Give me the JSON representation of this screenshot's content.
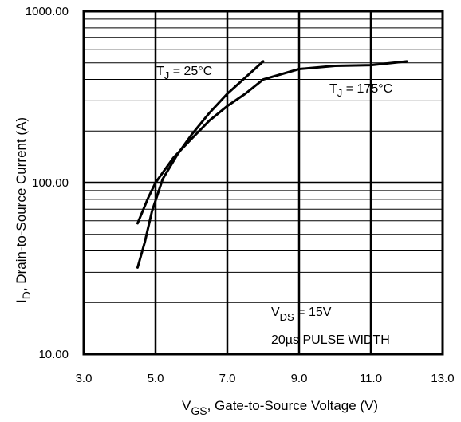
{
  "chart_data": {
    "type": "line",
    "xlabel": {
      "main": "V",
      "sub": "GS",
      "rest": ", Gate-to-Source Voltage (V)"
    },
    "ylabel": {
      "main": "I",
      "sub": "D",
      "rest": ", Drain-to-Source Current  (A)"
    },
    "xlim": [
      3.0,
      13.0
    ],
    "ylim": [
      10,
      1000
    ],
    "y_scale": "log",
    "x_ticks": [
      "3.0",
      "5.0",
      "7.0",
      "9.0",
      "11.0",
      "13.0"
    ],
    "y_ticks": [
      "10.00",
      "100.00",
      "1000.00"
    ],
    "grid": true,
    "series": [
      {
        "name": "TJ = 25°C",
        "label": {
          "main": "T",
          "sub": "J",
          "rest": " = 25°C"
        },
        "points": [
          [
            4.5,
            32
          ],
          [
            4.7,
            45
          ],
          [
            4.9,
            68
          ],
          [
            5.2,
            105
          ],
          [
            5.6,
            145
          ],
          [
            6.0,
            190
          ],
          [
            6.5,
            255
          ],
          [
            7.0,
            330
          ],
          [
            7.5,
            410
          ],
          [
            8.0,
            510
          ]
        ]
      },
      {
        "name": "TJ = 175°C",
        "label": {
          "main": "T",
          "sub": "J",
          "rest": " = 175°C"
        },
        "points": [
          [
            4.5,
            58
          ],
          [
            4.8,
            82
          ],
          [
            5.0,
            100
          ],
          [
            5.5,
            140
          ],
          [
            6.0,
            180
          ],
          [
            6.5,
            230
          ],
          [
            7.0,
            280
          ],
          [
            7.5,
            330
          ],
          [
            8.0,
            400
          ],
          [
            9.0,
            460
          ],
          [
            10.0,
            480
          ],
          [
            11.0,
            485
          ],
          [
            12.0,
            510
          ]
        ]
      }
    ],
    "annotations": [
      {
        "main": "V",
        "sub": "DS",
        "rest": " = 15V"
      },
      {
        "text": "20µs PULSE WIDTH"
      }
    ]
  }
}
